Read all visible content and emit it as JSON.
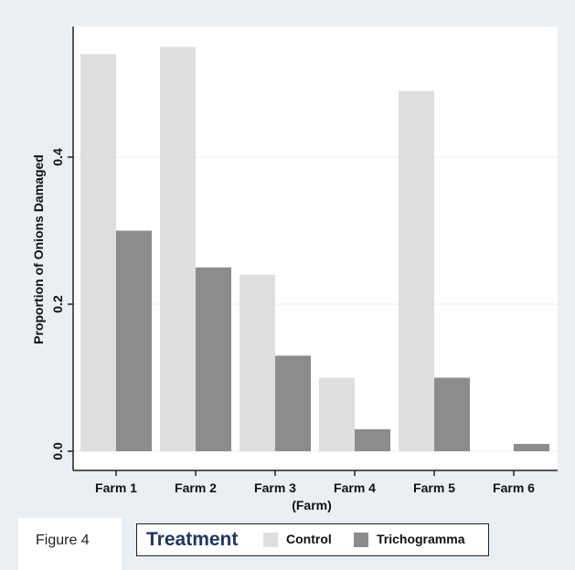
{
  "chart_data": {
    "type": "bar",
    "categories": [
      "Farm 1",
      "Farm 2",
      "Farm 3",
      "Farm 4",
      "Farm 5",
      "Farm 6"
    ],
    "series": [
      {
        "name": "Control",
        "values": [
          0.54,
          0.55,
          0.24,
          0.1,
          0.49,
          0.0
        ]
      },
      {
        "name": "Trichogramma",
        "values": [
          0.3,
          0.25,
          0.13,
          0.03,
          0.1,
          0.01
        ]
      }
    ],
    "ylabel": "Proportion of Onions Damaged",
    "xlabel": "(Farm)",
    "yticks": [
      "0.0",
      "0.2",
      "0.4"
    ],
    "ylim": [
      0,
      0.57
    ],
    "grid": true,
    "legend_placement": "bottom",
    "colors": {
      "Control": "#dedede",
      "Trichogramma": "#8c8c8c",
      "legend_title": "#1f3864"
    }
  },
  "legend": {
    "title": "Treatment",
    "items": [
      {
        "label": "Control"
      },
      {
        "label": "Trichogramma"
      }
    ]
  },
  "caption": "Figure 4"
}
